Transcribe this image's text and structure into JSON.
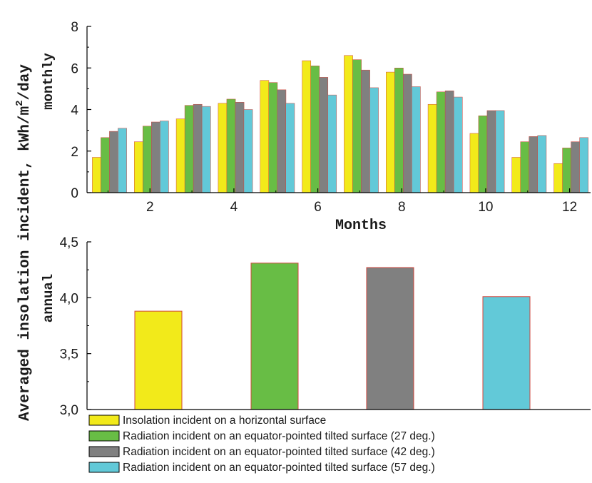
{
  "colors": {
    "horizontal": "#f2ea1a",
    "tilt27": "#68bd45",
    "tilt42": "#808080",
    "tilt57": "#62c9d8",
    "axis": "#000000",
    "bar_edge": "#d0463c"
  },
  "left_axis_label": {
    "line1": "Averaged insolation  incident, kWh/m",
    "superscript": "2",
    "line1_end": "/day",
    "top_sub": "monthly",
    "bottom_sub": "annual"
  },
  "legend": [
    "Insolation incident on  a horizontal surface",
    "Radiation incident on an equator-pointed tilted surface (27 deg.)",
    "Radiation incident on an equator-pointed tilted surface (42 deg.)",
    "Radiation incident on an equator-pointed tilted surface (57 deg.)"
  ],
  "chart_data": [
    {
      "type": "bar",
      "xlabel": "Months",
      "xlim": [
        0.5,
        12.5
      ],
      "xticks": [
        2,
        4,
        6,
        8,
        10,
        12
      ],
      "ylim": [
        0,
        8
      ],
      "yticks": [
        0,
        2,
        4,
        6,
        8
      ],
      "categories": [
        1,
        2,
        3,
        4,
        5,
        6,
        7,
        8,
        9,
        10,
        11,
        12
      ],
      "series": [
        {
          "values": [
            1.7,
            2.45,
            3.55,
            4.3,
            5.4,
            6.35,
            6.6,
            5.8,
            4.25,
            2.85,
            1.7,
            1.4
          ]
        },
        {
          "values": [
            2.65,
            3.2,
            4.2,
            4.5,
            5.3,
            6.1,
            6.4,
            6.0,
            4.85,
            3.7,
            2.45,
            2.15
          ]
        },
        {
          "values": [
            2.95,
            3.4,
            4.25,
            4.35,
            4.95,
            5.55,
            5.9,
            5.7,
            4.9,
            3.95,
            2.7,
            2.45
          ]
        },
        {
          "values": [
            3.1,
            3.45,
            4.15,
            4.0,
            4.3,
            4.7,
            5.05,
            5.1,
            4.6,
            3.95,
            2.75,
            2.65
          ]
        }
      ]
    },
    {
      "type": "bar",
      "ylim": [
        3.0,
        4.5
      ],
      "yticks": [
        "3,0",
        "3,5",
        "4,0",
        "4,5"
      ],
      "ytick_values": [
        3.0,
        3.5,
        4.0,
        4.5
      ],
      "categories": [
        "Insolation incident on  a horizontal surface",
        "Radiation incident on an equator-pointed tilted surface (27 deg.)",
        "Radiation incident on an equator-pointed tilted surface (42 deg.)",
        "Radiation incident on an equator-pointed tilted surface (57 deg.)"
      ],
      "values": [
        3.88,
        4.31,
        4.27,
        4.01
      ]
    }
  ]
}
